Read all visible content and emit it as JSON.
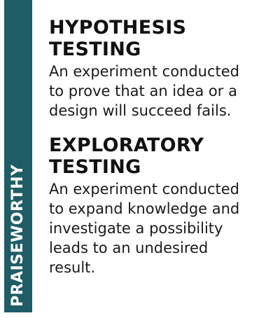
{
  "sidebar": {
    "label": "PRAISEWORTHY"
  },
  "items": [
    {
      "term_line1": "HYPOTHESIS",
      "term_line2": "TESTING",
      "definition_lines": [
        "An experiment conducted",
        "to prove that an idea or a",
        "design will succeed fails."
      ]
    },
    {
      "term_line1": "EXPLORATORY",
      "term_line2": "TESTING",
      "definition_lines": [
        "An experiment conducted",
        "to expand knowledge and",
        "investigate a possibility",
        "leads to an undesired",
        "result."
      ]
    }
  ],
  "colors": {
    "sidebar_background": "#1f5c66",
    "sidebar_text": "#ffffff",
    "text": "#111111"
  }
}
